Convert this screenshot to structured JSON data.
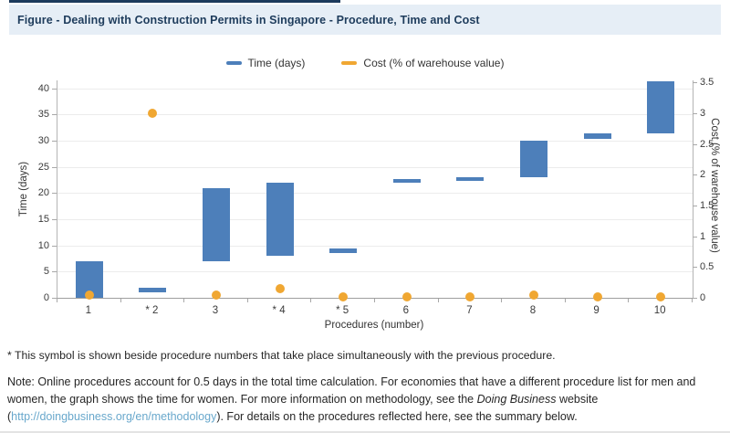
{
  "header": {
    "title": "Figure - Dealing with Construction Permits in Singapore - Procedure, Time and Cost"
  },
  "chart_data": {
    "type": "bar",
    "subtype": "floating-range-bars-with-points",
    "title": "Dealing with Construction Permits in Singapore - Procedure, Time and Cost",
    "categories": [
      "1",
      "* 2",
      "3",
      "* 4",
      "* 5",
      "6",
      "7",
      "8",
      "9",
      "10"
    ],
    "xlabel": "Procedures (number)",
    "ylabel_left": "Time (days)",
    "ylabel_right": "Cost (% of warehouse value)",
    "yleft_ticks": [
      0,
      5,
      10,
      15,
      20,
      25,
      30,
      35,
      40
    ],
    "yright_ticks": [
      0,
      0.5,
      1,
      1.5,
      2,
      2.5,
      3,
      3.5
    ],
    "yleft_max": 41.5,
    "yright_max": 3.5,
    "right_axis_days_per_unit": 11.74,
    "grid": true,
    "legend_position": "top",
    "series": [
      {
        "name": "Time (days)",
        "type": "range-bar",
        "axis": "left",
        "color": "#4d7fba",
        "ranges": [
          [
            0,
            7
          ],
          [
            1,
            2
          ],
          [
            7,
            21
          ],
          [
            8,
            22
          ],
          [
            8.5,
            9.5
          ],
          [
            22,
            22.6
          ],
          [
            22.4,
            23
          ],
          [
            23,
            30
          ],
          [
            30.4,
            31.3
          ],
          [
            31.3,
            41.4
          ]
        ]
      },
      {
        "name": "Cost (% of warehouse value)",
        "type": "point",
        "axis": "right",
        "color": "#f0a732",
        "values": [
          0.04,
          3.0,
          0.05,
          0.15,
          0.02,
          0.02,
          0.02,
          0.05,
          0.02,
          0.02
        ]
      }
    ]
  },
  "footnotes": {
    "asterisk": "* This symbol is shown beside procedure numbers that take place simultaneously with the previous procedure.",
    "note_part1": "Note: Online procedures account for 0.5 days in the total time calculation. For economies that have a different procedure list for men and women, the graph shows the time for women. For more information on methodology, see the ",
    "note_italic": "Doing Business",
    "note_part2": " website (",
    "note_link": "http://doingbusiness.org/en/methodology",
    "note_part3": "). For details on the procedures reflected here, see the summary below."
  }
}
